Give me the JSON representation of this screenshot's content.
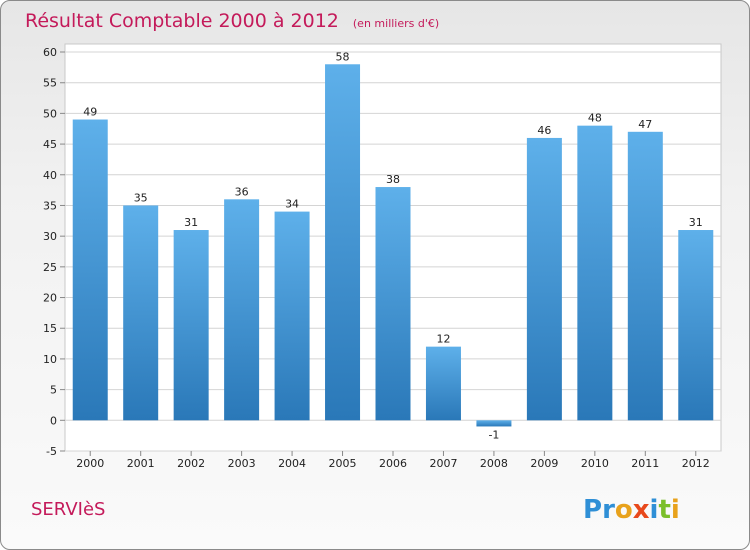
{
  "chart_data": {
    "type": "bar",
    "title": "Résultat Comptable 2000 à 2012",
    "subtitle": "(en milliers d'€)",
    "categories": [
      "2000",
      "2001",
      "2002",
      "2003",
      "2004",
      "2005",
      "2006",
      "2007",
      "2008",
      "2009",
      "2010",
      "2011",
      "2012"
    ],
    "values": [
      49,
      35,
      31,
      36,
      34,
      58,
      38,
      12,
      -1,
      46,
      48,
      47,
      31
    ],
    "xlabel": "",
    "ylabel": "",
    "ylim": [
      -5,
      60
    ],
    "yticks": [
      -5,
      0,
      5,
      10,
      15,
      20,
      25,
      30,
      35,
      40,
      45,
      50,
      55,
      60
    ],
    "grid": true,
    "legend": "none"
  },
  "footer": {
    "commune": "SERVIèS",
    "logo_letters": [
      "P",
      "r",
      "o",
      "x",
      "i",
      "t",
      "i"
    ]
  },
  "colors": {
    "bar_light": "#5eb0ea",
    "bar_dark": "#2a78b8",
    "title": "#c41a5a",
    "grid": "#d4d4d4",
    "logo": [
      "#2f8fd6",
      "#2f8fd6",
      "#e8a21c",
      "#e8491c",
      "#2f8fd6",
      "#7bbf2a",
      "#e8a21c"
    ]
  }
}
